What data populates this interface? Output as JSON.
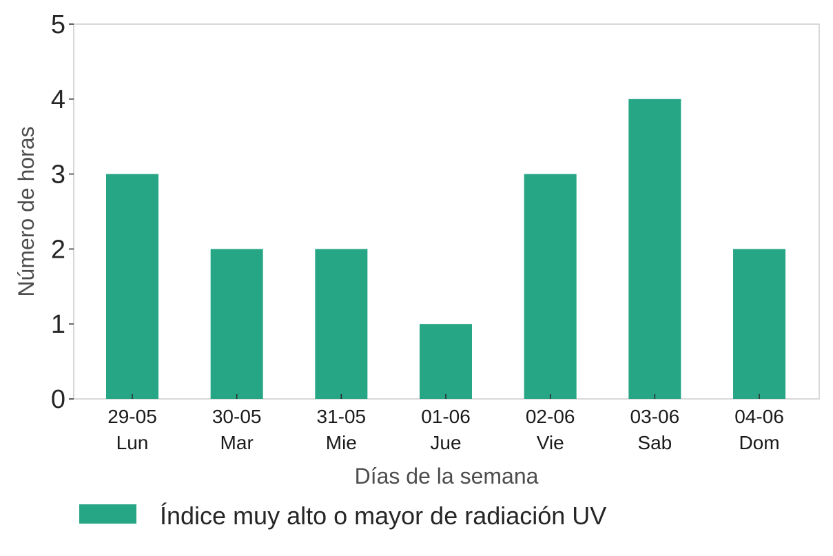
{
  "chart_data": {
    "type": "bar",
    "categories": [
      [
        "29-05",
        "Lun"
      ],
      [
        "30-05",
        "Mar"
      ],
      [
        "31-05",
        "Mie"
      ],
      [
        "01-06",
        "Jue"
      ],
      [
        "02-06",
        "Vie"
      ],
      [
        "03-06",
        "Sab"
      ],
      [
        "04-06",
        "Dom"
      ]
    ],
    "series": [
      {
        "name": "Índice muy alto o mayor de radiación UV",
        "color": "#27a686",
        "values": [
          3,
          2,
          2,
          1,
          3,
          4,
          2
        ]
      }
    ],
    "xlabel": "Días de la semana",
    "ylabel": "Número de horas",
    "ylim": [
      0,
      5
    ],
    "yticks": [
      "0",
      "1",
      "2",
      "3",
      "4",
      "5"
    ],
    "grid": false,
    "legend_position": "bottom",
    "frame_color": "#cccccc"
  }
}
